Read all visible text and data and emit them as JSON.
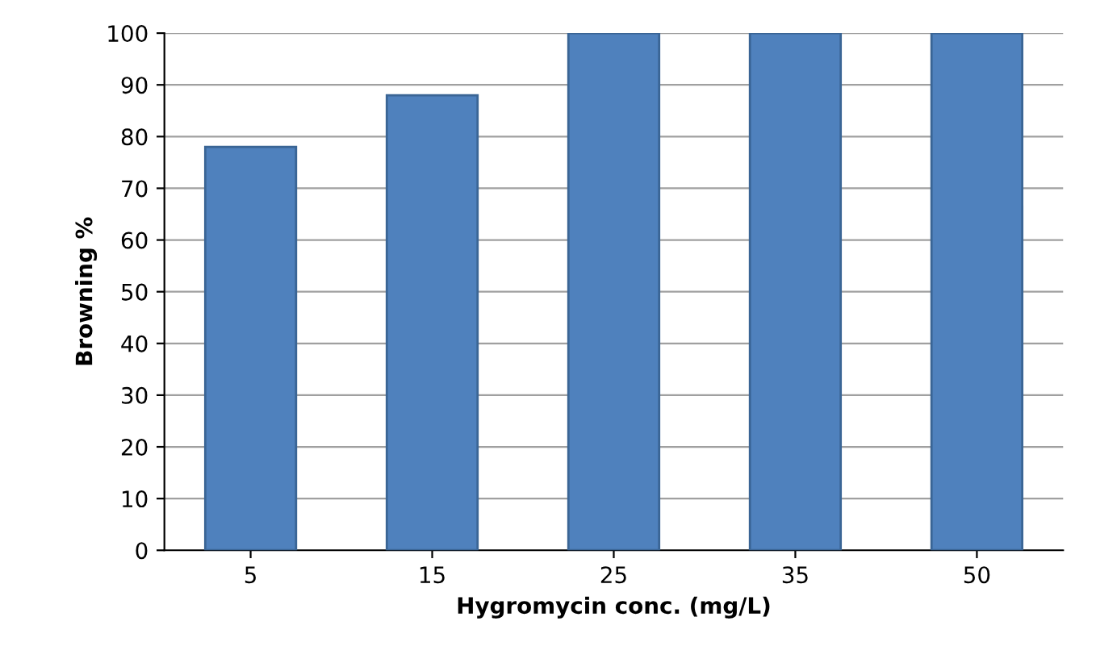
{
  "chart_data": {
    "type": "bar",
    "xlabel": "Hygromycin conc. (mg/L)",
    "ylabel": "Browning %",
    "categories": [
      "5",
      "15",
      "25",
      "35",
      "50"
    ],
    "values": [
      78,
      88,
      100,
      100,
      100
    ],
    "color": "#4f81bd",
    "ylim": [
      0,
      100
    ],
    "yticks": [
      0,
      10,
      20,
      30,
      40,
      50,
      60,
      70,
      80,
      90,
      100
    ],
    "grid": "y",
    "legend": false
  }
}
